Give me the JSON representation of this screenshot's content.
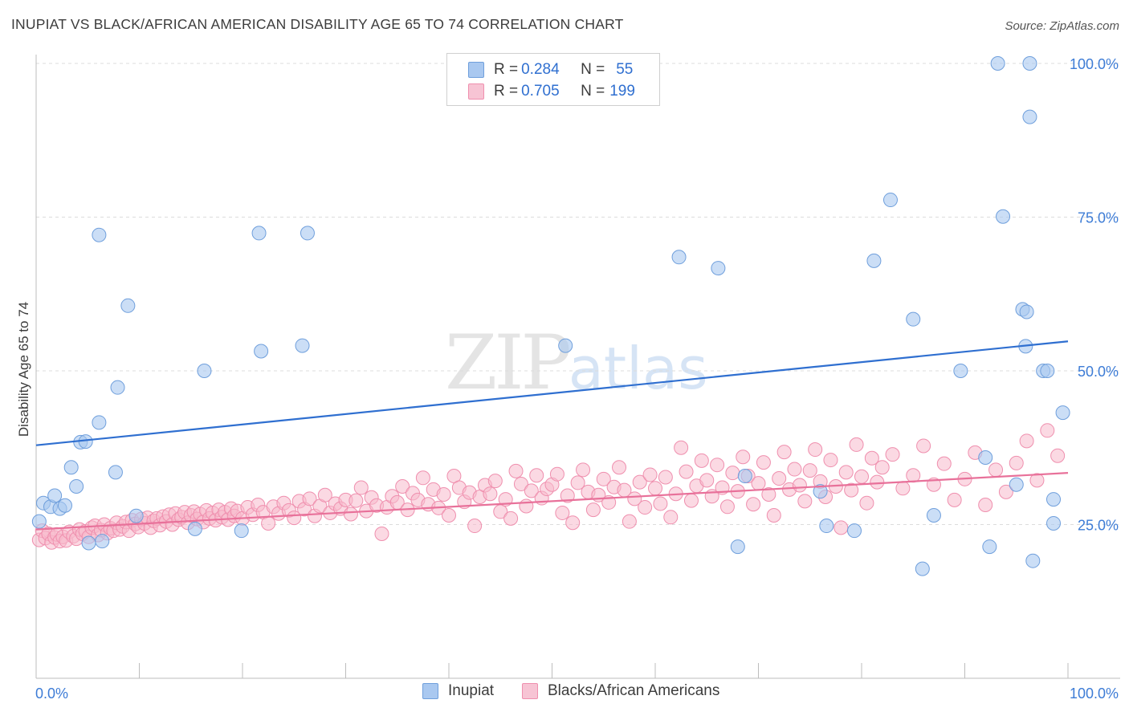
{
  "title": "INUPIAT VS BLACK/AFRICAN AMERICAN DISABILITY AGE 65 TO 74 CORRELATION CHART",
  "source": "Source: ZipAtlas.com",
  "watermark": {
    "zip": "ZIP",
    "atlas": "atlas"
  },
  "colors": {
    "inupiat_fill": "#a9c8f0",
    "inupiat_stroke": "#6f9fdc",
    "inupiat_line": "#2f6fd0",
    "black_fill": "#f7b9cc",
    "black_stroke": "#ef8fae",
    "black_line": "#e8719a",
    "tick_label": "#3d7cd6",
    "grid": "#dcdcdc"
  },
  "legend": {
    "rows": [
      {
        "r_label": "R = ",
        "r_value": "0.284",
        "n_label": "N = ",
        "n_value": "55"
      },
      {
        "r_label": "R = ",
        "r_value": "0.705",
        "n_label": "N = ",
        "n_value": "199"
      }
    ]
  },
  "chart_data": {
    "type": "scatter",
    "title": "INUPIAT VS BLACK/AFRICAN AMERICAN DISABILITY AGE 65 TO 74 CORRELATION CHART",
    "xlabel": "",
    "ylabel": "Disability Age 65 to 74",
    "xlim": [
      0,
      100
    ],
    "ylim": [
      0,
      102
    ],
    "x_tick_labels": [
      "0.0%",
      "100.0%"
    ],
    "y_tick_labels": [
      "25.0%",
      "50.0%",
      "75.0%",
      "100.0%"
    ],
    "y_ticks": [
      25,
      50,
      75,
      100
    ],
    "grid": "horizontal dashed",
    "legend_position": "bottom",
    "series": [
      {
        "name": "Inupiat",
        "r": 0.284,
        "n": 55,
        "trend": {
          "x0": 0,
          "y0": 37.9,
          "x1": 100,
          "y1": 54.8
        },
        "points": [
          [
            0.3,
            25.5
          ],
          [
            0.7,
            28.5
          ],
          [
            1.4,
            27.9
          ],
          [
            1.8,
            29.7
          ],
          [
            2.3,
            27.6
          ],
          [
            2.8,
            28.1
          ],
          [
            3.4,
            34.3
          ],
          [
            3.9,
            31.2
          ],
          [
            4.3,
            38.4
          ],
          [
            4.8,
            38.5
          ],
          [
            5.1,
            22.0
          ],
          [
            6.1,
            72.1
          ],
          [
            6.4,
            22.3
          ],
          [
            6.1,
            41.6
          ],
          [
            7.7,
            33.5
          ],
          [
            7.9,
            47.3
          ],
          [
            8.9,
            60.6
          ],
          [
            9.7,
            26.4
          ],
          [
            15.4,
            24.3
          ],
          [
            16.3,
            50.0
          ],
          [
            19.9,
            24.0
          ],
          [
            21.6,
            72.4
          ],
          [
            21.8,
            53.2
          ],
          [
            25.8,
            54.1
          ],
          [
            26.3,
            72.4
          ],
          [
            51.3,
            54.1
          ],
          [
            62.3,
            68.5
          ],
          [
            66.1,
            66.7
          ],
          [
            68.7,
            32.9
          ],
          [
            68.0,
            21.4
          ],
          [
            76.6,
            24.8
          ],
          [
            87.0,
            26.5
          ],
          [
            76.0,
            30.4
          ],
          [
            79.3,
            24.0
          ],
          [
            81.2,
            67.9
          ],
          [
            82.8,
            77.8
          ],
          [
            85.0,
            58.4
          ],
          [
            85.9,
            17.8
          ],
          [
            89.6,
            50.0
          ],
          [
            92.4,
            21.4
          ],
          [
            92.0,
            35.9
          ],
          [
            93.7,
            75.1
          ],
          [
            95.0,
            31.5
          ],
          [
            95.6,
            60.0
          ],
          [
            96.3,
            91.3
          ],
          [
            93.2,
            100.0
          ],
          [
            95.9,
            54.0
          ],
          [
            96.0,
            59.6
          ],
          [
            96.3,
            100.0
          ],
          [
            97.6,
            50.0
          ],
          [
            98.0,
            50.0
          ],
          [
            96.6,
            19.1
          ],
          [
            98.6,
            25.2
          ],
          [
            98.6,
            29.1
          ],
          [
            99.5,
            43.2
          ]
        ]
      },
      {
        "name": "Blacks/African Americans",
        "r": 0.705,
        "n": 199,
        "trend": {
          "x0": 0,
          "y0": 24.2,
          "x1": 100,
          "y1": 33.4
        },
        "points": [
          [
            0.3,
            22.5
          ],
          [
            0.6,
            24.0
          ],
          [
            0.9,
            22.8
          ],
          [
            1.2,
            23.5
          ],
          [
            1.5,
            22.1
          ],
          [
            1.8,
            22.9
          ],
          [
            2.0,
            23.4
          ],
          [
            2.3,
            22.3
          ],
          [
            2.6,
            23.0
          ],
          [
            2.9,
            22.4
          ],
          [
            3.2,
            23.8
          ],
          [
            3.6,
            23.1
          ],
          [
            3.9,
            22.7
          ],
          [
            4.2,
            24.2
          ],
          [
            4.5,
            23.5
          ],
          [
            4.8,
            23.9
          ],
          [
            5.1,
            23.0
          ],
          [
            5.4,
            24.5
          ],
          [
            5.7,
            24.8
          ],
          [
            6.0,
            23.3
          ],
          [
            6.3,
            24.1
          ],
          [
            6.6,
            25.0
          ],
          [
            6.9,
            23.6
          ],
          [
            7.2,
            24.4
          ],
          [
            7.5,
            24.0
          ],
          [
            7.8,
            25.3
          ],
          [
            8.1,
            24.2
          ],
          [
            8.4,
            24.7
          ],
          [
            8.7,
            25.4
          ],
          [
            9.0,
            24.0
          ],
          [
            9.3,
            25.7
          ],
          [
            9.6,
            25.1
          ],
          [
            9.9,
            24.6
          ],
          [
            10.2,
            25.9
          ],
          [
            10.5,
            25.2
          ],
          [
            10.8,
            26.1
          ],
          [
            11.1,
            24.5
          ],
          [
            11.4,
            25.6
          ],
          [
            11.7,
            26.0
          ],
          [
            12.0,
            24.9
          ],
          [
            12.3,
            26.3
          ],
          [
            12.6,
            25.5
          ],
          [
            12.9,
            26.6
          ],
          [
            13.2,
            25.0
          ],
          [
            13.5,
            26.8
          ],
          [
            13.8,
            25.8
          ],
          [
            14.1,
            26.2
          ],
          [
            14.4,
            27.0
          ],
          [
            14.7,
            25.3
          ],
          [
            15.0,
            26.5
          ],
          [
            15.3,
            27.1
          ],
          [
            15.6,
            25.9
          ],
          [
            15.9,
            26.7
          ],
          [
            16.2,
            25.4
          ],
          [
            16.5,
            27.3
          ],
          [
            16.8,
            26.0
          ],
          [
            17.1,
            26.9
          ],
          [
            17.4,
            25.7
          ],
          [
            17.7,
            27.4
          ],
          [
            18.0,
            26.2
          ],
          [
            18.3,
            27.0
          ],
          [
            18.6,
            25.8
          ],
          [
            18.9,
            27.6
          ],
          [
            19.2,
            26.4
          ],
          [
            19.5,
            27.2
          ],
          [
            20.0,
            26.0
          ],
          [
            20.5,
            27.8
          ],
          [
            21.0,
            26.6
          ],
          [
            21.5,
            28.2
          ],
          [
            22.0,
            27.0
          ],
          [
            22.5,
            25.2
          ],
          [
            23.0,
            27.9
          ],
          [
            23.5,
            26.8
          ],
          [
            24.0,
            28.5
          ],
          [
            24.5,
            27.3
          ],
          [
            25.0,
            26.1
          ],
          [
            25.5,
            28.8
          ],
          [
            26.0,
            27.5
          ],
          [
            26.5,
            29.2
          ],
          [
            27.0,
            26.4
          ],
          [
            27.5,
            28.0
          ],
          [
            28.0,
            29.8
          ],
          [
            28.5,
            26.9
          ],
          [
            29.0,
            28.4
          ],
          [
            29.5,
            27.6
          ],
          [
            30.0,
            29.0
          ],
          [
            30.5,
            26.7
          ],
          [
            31.0,
            28.9
          ],
          [
            31.5,
            31.0
          ],
          [
            32.0,
            27.2
          ],
          [
            32.5,
            29.4
          ],
          [
            33.0,
            28.1
          ],
          [
            33.5,
            23.5
          ],
          [
            34.0,
            27.8
          ],
          [
            34.5,
            29.6
          ],
          [
            35.0,
            28.6
          ],
          [
            35.5,
            31.2
          ],
          [
            36.0,
            27.4
          ],
          [
            36.5,
            30.1
          ],
          [
            37.0,
            29.0
          ],
          [
            37.5,
            32.6
          ],
          [
            38.0,
            28.3
          ],
          [
            38.5,
            30.7
          ],
          [
            39.0,
            27.7
          ],
          [
            39.5,
            29.9
          ],
          [
            40.0,
            26.5
          ],
          [
            40.5,
            32.9
          ],
          [
            41.0,
            31.0
          ],
          [
            41.5,
            28.7
          ],
          [
            42.0,
            30.2
          ],
          [
            42.5,
            24.8
          ],
          [
            43.0,
            29.5
          ],
          [
            43.5,
            31.4
          ],
          [
            44.0,
            30.0
          ],
          [
            44.5,
            32.1
          ],
          [
            45.0,
            27.1
          ],
          [
            45.5,
            29.1
          ],
          [
            46.0,
            26.0
          ],
          [
            46.5,
            33.7
          ],
          [
            47.0,
            31.6
          ],
          [
            47.5,
            28.0
          ],
          [
            48.0,
            30.5
          ],
          [
            48.5,
            33.0
          ],
          [
            49.0,
            29.3
          ],
          [
            49.5,
            30.8
          ],
          [
            50.0,
            31.5
          ],
          [
            50.5,
            33.2
          ],
          [
            51.0,
            26.9
          ],
          [
            51.5,
            29.7
          ],
          [
            52.0,
            25.3
          ],
          [
            52.5,
            31.8
          ],
          [
            53.0,
            33.9
          ],
          [
            53.5,
            30.3
          ],
          [
            54.0,
            27.4
          ],
          [
            54.5,
            29.8
          ],
          [
            55.0,
            32.4
          ],
          [
            55.5,
            28.6
          ],
          [
            56.0,
            31.1
          ],
          [
            56.5,
            34.3
          ],
          [
            57.0,
            30.6
          ],
          [
            57.5,
            25.5
          ],
          [
            58.0,
            29.2
          ],
          [
            58.5,
            31.9
          ],
          [
            59.0,
            27.8
          ],
          [
            59.5,
            33.1
          ],
          [
            60.0,
            30.9
          ],
          [
            60.5,
            28.4
          ],
          [
            61.0,
            32.7
          ],
          [
            61.5,
            26.2
          ],
          [
            62.0,
            30.0
          ],
          [
            62.5,
            37.5
          ],
          [
            63.0,
            33.6
          ],
          [
            63.5,
            28.9
          ],
          [
            64.0,
            31.3
          ],
          [
            64.5,
            35.4
          ],
          [
            65.0,
            32.2
          ],
          [
            65.5,
            29.6
          ],
          [
            66.0,
            34.7
          ],
          [
            66.5,
            31.0
          ],
          [
            67.0,
            27.9
          ],
          [
            67.5,
            33.4
          ],
          [
            68.0,
            30.4
          ],
          [
            68.5,
            36.0
          ],
          [
            69.0,
            32.9
          ],
          [
            69.5,
            28.3
          ],
          [
            70.0,
            31.7
          ],
          [
            70.5,
            35.1
          ],
          [
            71.0,
            29.9
          ],
          [
            71.5,
            26.5
          ],
          [
            72.0,
            32.5
          ],
          [
            72.5,
            36.8
          ],
          [
            73.0,
            30.7
          ],
          [
            73.5,
            34.0
          ],
          [
            74.0,
            31.4
          ],
          [
            74.5,
            28.8
          ],
          [
            75.0,
            33.8
          ],
          [
            75.5,
            37.2
          ],
          [
            76.0,
            32.0
          ],
          [
            76.5,
            29.5
          ],
          [
            77.0,
            35.5
          ],
          [
            77.5,
            31.2
          ],
          [
            78.0,
            24.5
          ],
          [
            78.5,
            33.5
          ],
          [
            79.0,
            30.6
          ],
          [
            79.5,
            38.0
          ],
          [
            80.0,
            32.8
          ],
          [
            80.5,
            28.5
          ],
          [
            81.0,
            35.8
          ],
          [
            81.5,
            31.9
          ],
          [
            82.0,
            34.3
          ],
          [
            83.0,
            36.4
          ],
          [
            84.0,
            30.9
          ],
          [
            85.0,
            33.0
          ],
          [
            86.0,
            37.8
          ],
          [
            87.0,
            31.5
          ],
          [
            88.0,
            34.9
          ],
          [
            89.0,
            29.0
          ],
          [
            90.0,
            32.4
          ],
          [
            91.0,
            36.7
          ],
          [
            92.0,
            28.2
          ],
          [
            93.0,
            33.9
          ],
          [
            94.0,
            30.3
          ],
          [
            95.0,
            35.0
          ],
          [
            96.0,
            38.6
          ],
          [
            97.0,
            32.2
          ],
          [
            98.0,
            40.3
          ],
          [
            99.0,
            36.2
          ]
        ]
      }
    ]
  },
  "bottom_legend": [
    {
      "label": "Inupiat"
    },
    {
      "label": "Blacks/African Americans"
    }
  ]
}
